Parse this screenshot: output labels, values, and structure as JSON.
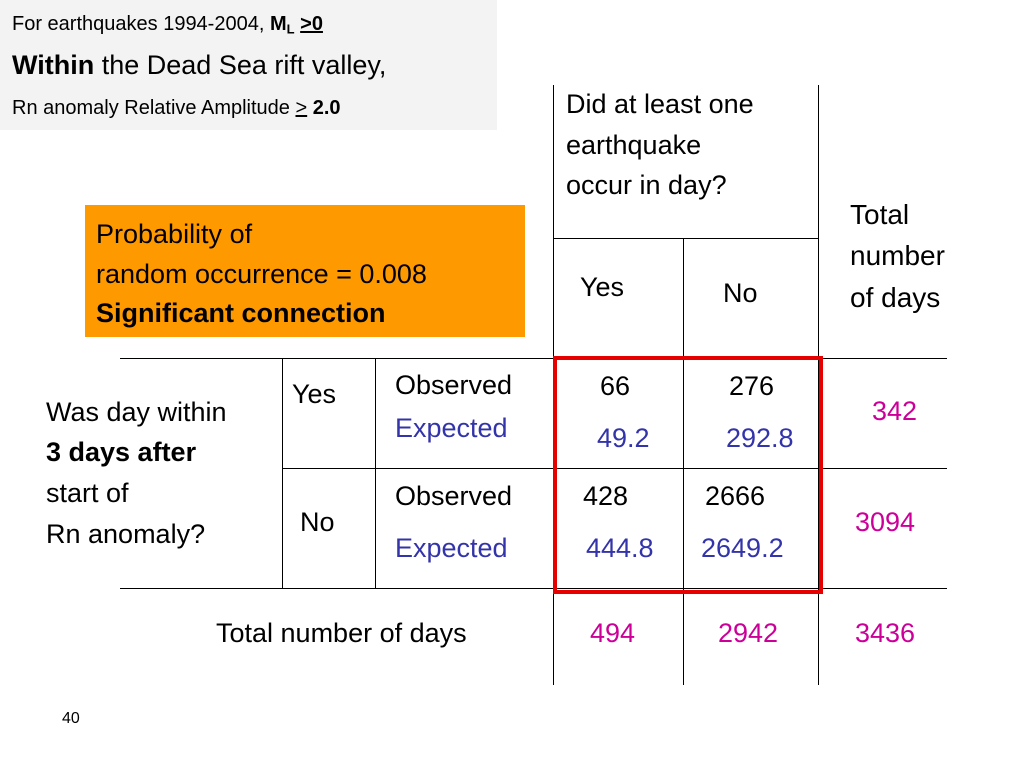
{
  "info": {
    "line1_text": "For earthquakes 1994-2004, ",
    "line1_ml": "M",
    "line1_ml_sub": "L",
    "line1_cond": " >0",
    "line2_bold": "Within",
    "line2_rest": " the Dead Sea rift valley,",
    "line3_text": "Rn anomaly Relative Amplitude ",
    "line3_sym": ">",
    "line3_val": " 2.0"
  },
  "prob_box": {
    "line1": "Probability of",
    "line2": "random occurrence = 0.008",
    "line3": "Significant connection"
  },
  "header": {
    "question_line1": "Did  at least one",
    "question_line2": "earthquake",
    "question_line3": "occur in day?",
    "col_yes": "Yes",
    "col_no": "No",
    "total_line1": "Total",
    "total_line2": "number",
    "total_line3": "of days"
  },
  "row_question": {
    "line1": "Was day within",
    "line2": "3 days after",
    "line3": "start of",
    "line4": "Rn anomaly?"
  },
  "rows": {
    "yes": {
      "label": "Yes",
      "observed_label": "Observed",
      "expected_label": "Expected",
      "obs_yes": "66",
      "obs_no": "276",
      "exp_yes": "49.2",
      "exp_no": "292.8",
      "total": "342"
    },
    "no": {
      "label": "No",
      "observed_label": "Observed",
      "expected_label": "Expected",
      "obs_yes": "428",
      "obs_no": "2666",
      "exp_yes": "444.8",
      "exp_no": "2649.2",
      "total": "3094"
    }
  },
  "totals": {
    "label": "Total number of days",
    "yes": "494",
    "no": "2942",
    "all": "3436"
  },
  "slide_number": "40",
  "colors": {
    "expected": "#3333aa",
    "totals": "#cc0099",
    "highlight_border": "#e60000",
    "prob_box_bg": "#ff9900"
  }
}
